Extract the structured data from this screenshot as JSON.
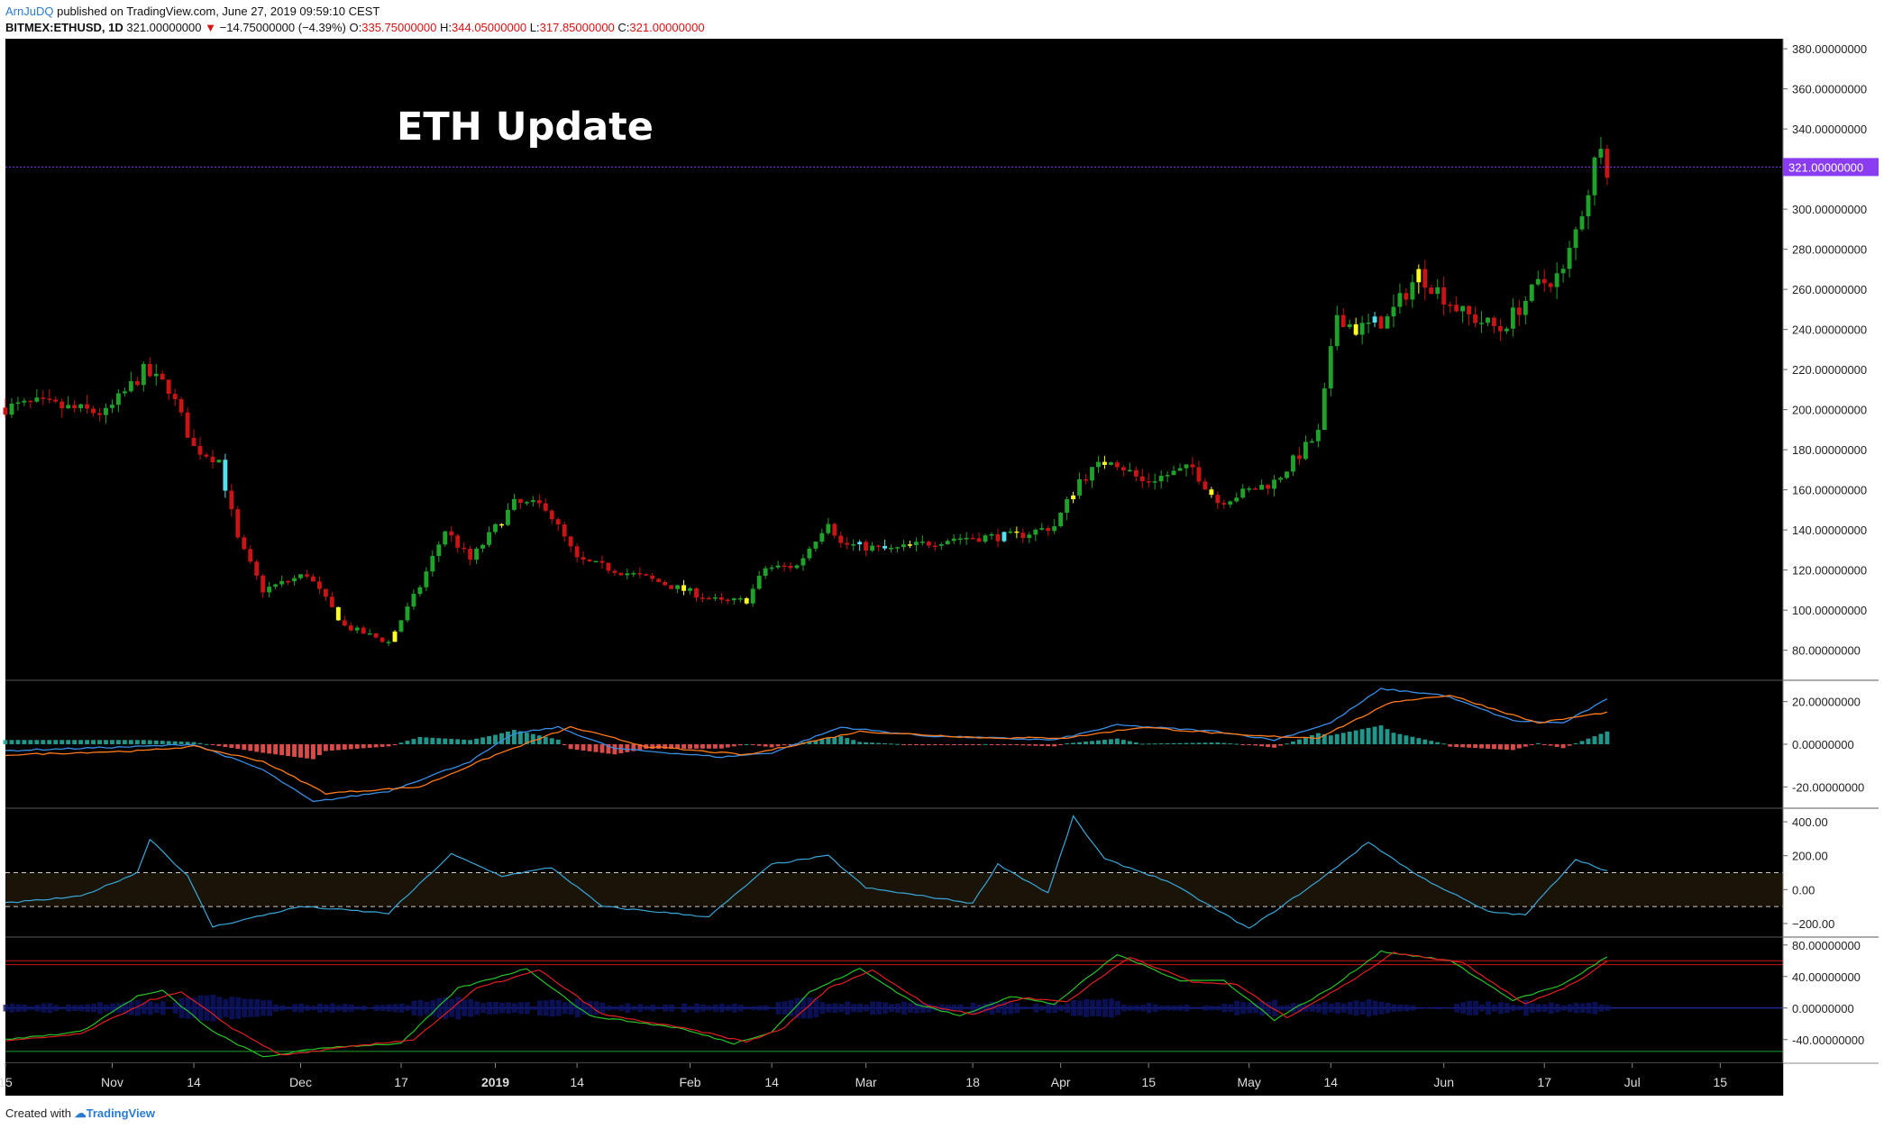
{
  "header": {
    "author": "ArnJuDQ",
    "published_text": "published on TradingView.com, June 27, 2019 09:59:10 CEST",
    "symbol": "BITMEX:ETHUSD, 1D",
    "last": "321.00000000",
    "change": "−14.75000000 (−4.39%)",
    "open_label": "O:",
    "open": "335.75000000",
    "high_label": "H:",
    "high": "344.05000000",
    "low_label": "L:",
    "low": "317.85000000",
    "close_label": "C:",
    "close": "321.00000000"
  },
  "footer": {
    "created_with": "Created with",
    "brand": "TradingView"
  },
  "colors": {
    "background": "#000000",
    "up": "#1fa22a",
    "down": "#c81414",
    "highlight_up": "#ffff22",
    "highlight_down": "#55e0ee",
    "price_line": "#8a3df0",
    "macd_line": "#3a8ee6",
    "signal_line": "#ff7a1a",
    "cci_line": "#3aa6d6",
    "stoch_k": "#27c227",
    "stoch_d": "#e21f1f"
  },
  "chart_data": [
    {
      "type": "candlestick",
      "title": "ETH Update",
      "series_name": "BITMEX:ETHUSD, 1D",
      "ylim": [
        65,
        385
      ],
      "yticks": [
        80,
        100,
        120,
        140,
        160,
        180,
        200,
        220,
        240,
        260,
        280,
        300,
        320,
        340,
        360,
        380
      ],
      "ytick_labels": [
        "80.00000000",
        "100.00000000",
        "120.00000000",
        "140.00000000",
        "160.00000000",
        "180.00000000",
        "200.00000000",
        "220.00000000",
        "240.00000000",
        "260.00000000",
        "280.00000000",
        "300.00000000",
        "320.00000000",
        "340.00000000",
        "360.00000000",
        "380.00000000"
      ],
      "last_price": 321,
      "last_price_label": "321.00000000",
      "x_date_range": [
        "2018-10-15",
        "2019-07-25"
      ],
      "price_path": [
        {
          "x": "2018-10-15",
          "y": 201
        },
        {
          "x": "2018-10-20",
          "y": 203
        },
        {
          "x": "2018-10-31",
          "y": 198
        },
        {
          "x": "2018-11-06",
          "y": 219
        },
        {
          "x": "2018-11-10",
          "y": 211
        },
        {
          "x": "2018-11-14",
          "y": 181
        },
        {
          "x": "2018-11-18",
          "y": 175
        },
        {
          "x": "2018-11-21",
          "y": 135
        },
        {
          "x": "2018-11-25",
          "y": 110
        },
        {
          "x": "2018-12-02",
          "y": 118
        },
        {
          "x": "2018-12-08",
          "y": 92
        },
        {
          "x": "2018-12-15",
          "y": 84
        },
        {
          "x": "2018-12-20",
          "y": 112
        },
        {
          "x": "2018-12-24",
          "y": 140
        },
        {
          "x": "2018-12-28",
          "y": 125
        },
        {
          "x": "2019-01-04",
          "y": 153
        },
        {
          "x": "2019-01-09",
          "y": 152
        },
        {
          "x": "2019-01-14",
          "y": 125
        },
        {
          "x": "2019-01-25",
          "y": 116
        },
        {
          "x": "2019-02-06",
          "y": 104
        },
        {
          "x": "2019-02-10",
          "y": 105
        },
        {
          "x": "2019-02-13",
          "y": 121
        },
        {
          "x": "2019-02-18",
          "y": 122
        },
        {
          "x": "2019-02-23",
          "y": 145
        },
        {
          "x": "2019-02-25",
          "y": 133
        },
        {
          "x": "2019-03-05",
          "y": 130
        },
        {
          "x": "2019-03-15",
          "y": 136
        },
        {
          "x": "2019-03-25",
          "y": 137
        },
        {
          "x": "2019-03-31",
          "y": 142
        },
        {
          "x": "2019-04-04",
          "y": 165
        },
        {
          "x": "2019-04-09",
          "y": 176
        },
        {
          "x": "2019-04-14",
          "y": 164
        },
        {
          "x": "2019-04-22",
          "y": 171
        },
        {
          "x": "2019-04-26",
          "y": 154
        },
        {
          "x": "2019-05-05",
          "y": 164
        },
        {
          "x": "2019-05-12",
          "y": 188
        },
        {
          "x": "2019-05-15",
          "y": 248
        },
        {
          "x": "2019-05-18",
          "y": 240
        },
        {
          "x": "2019-05-23",
          "y": 245
        },
        {
          "x": "2019-05-28",
          "y": 268
        },
        {
          "x": "2019-06-04",
          "y": 248
        },
        {
          "x": "2019-06-10",
          "y": 240
        },
        {
          "x": "2019-06-16",
          "y": 262
        },
        {
          "x": "2019-06-20",
          "y": 268
        },
        {
          "x": "2019-06-24",
          "y": 310
        },
        {
          "x": "2019-06-26",
          "y": 336
        },
        {
          "x": "2019-06-27",
          "y": 321
        }
      ],
      "xtick_labels": [
        {
          "x": "2018-10-15",
          "label": "15"
        },
        {
          "x": "2018-11-01",
          "label": "Nov"
        },
        {
          "x": "2018-11-14",
          "label": "14"
        },
        {
          "x": "2018-12-01",
          "label": "Dec"
        },
        {
          "x": "2018-12-17",
          "label": "17"
        },
        {
          "x": "2019-01-01",
          "label": "2019"
        },
        {
          "x": "2019-01-14",
          "label": "14"
        },
        {
          "x": "2019-02-01",
          "label": "Feb"
        },
        {
          "x": "2019-02-14",
          "label": "14"
        },
        {
          "x": "2019-03-01",
          "label": "Mar"
        },
        {
          "x": "2019-03-18",
          "label": "18"
        },
        {
          "x": "2019-04-01",
          "label": "Apr"
        },
        {
          "x": "2019-04-15",
          "label": "15"
        },
        {
          "x": "2019-05-01",
          "label": "May"
        },
        {
          "x": "2019-05-14",
          "label": "14"
        },
        {
          "x": "2019-06-01",
          "label": "Jun"
        },
        {
          "x": "2019-06-17",
          "label": "17"
        },
        {
          "x": "2019-07-01",
          "label": "Jul"
        },
        {
          "x": "2019-07-15",
          "label": "15"
        }
      ]
    },
    {
      "type": "macd",
      "ylim": [
        -30,
        30
      ],
      "yticks": [
        -20,
        0,
        20
      ],
      "ytick_labels": [
        "-20.00000000",
        "0.00000000",
        "20.00000000"
      ],
      "macd_path": [
        {
          "x": "2018-10-15",
          "y": -3
        },
        {
          "x": "2018-11-06",
          "y": -1
        },
        {
          "x": "2018-11-14",
          "y": 0
        },
        {
          "x": "2018-11-25",
          "y": -12
        },
        {
          "x": "2018-12-03",
          "y": -27
        },
        {
          "x": "2018-12-15",
          "y": -22
        },
        {
          "x": "2018-12-28",
          "y": -8
        },
        {
          "x": "2019-01-04",
          "y": 5
        },
        {
          "x": "2019-01-11",
          "y": 8
        },
        {
          "x": "2019-01-20",
          "y": -2
        },
        {
          "x": "2019-02-06",
          "y": -6
        },
        {
          "x": "2019-02-14",
          "y": -4
        },
        {
          "x": "2019-02-25",
          "y": 8
        },
        {
          "x": "2019-03-10",
          "y": 4
        },
        {
          "x": "2019-03-31",
          "y": 2
        },
        {
          "x": "2019-04-10",
          "y": 9
        },
        {
          "x": "2019-04-26",
          "y": 6
        },
        {
          "x": "2019-05-05",
          "y": 2
        },
        {
          "x": "2019-05-14",
          "y": 10
        },
        {
          "x": "2019-05-22",
          "y": 26
        },
        {
          "x": "2019-06-01",
          "y": 23
        },
        {
          "x": "2019-06-12",
          "y": 11
        },
        {
          "x": "2019-06-20",
          "y": 10
        },
        {
          "x": "2019-06-27",
          "y": 21
        }
      ],
      "signal_path": [
        {
          "x": "2018-10-15",
          "y": -5
        },
        {
          "x": "2018-11-06",
          "y": -3
        },
        {
          "x": "2018-11-14",
          "y": -1
        },
        {
          "x": "2018-11-25",
          "y": -8
        },
        {
          "x": "2018-12-05",
          "y": -23
        },
        {
          "x": "2018-12-20",
          "y": -20
        },
        {
          "x": "2019-01-01",
          "y": -5
        },
        {
          "x": "2019-01-13",
          "y": 8
        },
        {
          "x": "2019-01-25",
          "y": -1
        },
        {
          "x": "2019-02-10",
          "y": -5
        },
        {
          "x": "2019-02-28",
          "y": 6
        },
        {
          "x": "2019-03-20",
          "y": 3
        },
        {
          "x": "2019-04-02",
          "y": 3
        },
        {
          "x": "2019-04-14",
          "y": 8
        },
        {
          "x": "2019-05-01",
          "y": 4
        },
        {
          "x": "2019-05-12",
          "y": 3
        },
        {
          "x": "2019-05-24",
          "y": 20
        },
        {
          "x": "2019-06-02",
          "y": 23
        },
        {
          "x": "2019-06-16",
          "y": 10
        },
        {
          "x": "2019-06-27",
          "y": 15
        }
      ]
    },
    {
      "type": "cci",
      "ylim": [
        -280,
        480
      ],
      "yticks": [
        -200,
        0,
        200,
        400
      ],
      "ytick_labels": [
        "−200.00",
        "0.00",
        "200.00",
        "400.00"
      ],
      "band": [
        -100,
        100
      ],
      "path": [
        {
          "x": "2018-10-15",
          "y": -80
        },
        {
          "x": "2018-10-27",
          "y": -40
        },
        {
          "x": "2018-11-05",
          "y": 100
        },
        {
          "x": "2018-11-07",
          "y": 300
        },
        {
          "x": "2018-11-13",
          "y": 80
        },
        {
          "x": "2018-11-17",
          "y": -220
        },
        {
          "x": "2018-12-01",
          "y": -100
        },
        {
          "x": "2018-12-15",
          "y": -140
        },
        {
          "x": "2018-12-25",
          "y": 210
        },
        {
          "x": "2019-01-02",
          "y": 80
        },
        {
          "x": "2019-01-10",
          "y": 130
        },
        {
          "x": "2019-01-18",
          "y": -100
        },
        {
          "x": "2019-02-04",
          "y": -160
        },
        {
          "x": "2019-02-14",
          "y": 150
        },
        {
          "x": "2019-02-23",
          "y": 200
        },
        {
          "x": "2019-03-01",
          "y": 10
        },
        {
          "x": "2019-03-18",
          "y": -80
        },
        {
          "x": "2019-03-22",
          "y": 150
        },
        {
          "x": "2019-03-30",
          "y": -20
        },
        {
          "x": "2019-04-03",
          "y": 430
        },
        {
          "x": "2019-04-08",
          "y": 180
        },
        {
          "x": "2019-04-18",
          "y": 50
        },
        {
          "x": "2019-05-01",
          "y": -230
        },
        {
          "x": "2019-05-12",
          "y": 50
        },
        {
          "x": "2019-05-20",
          "y": 280
        },
        {
          "x": "2019-05-28",
          "y": 80
        },
        {
          "x": "2019-06-08",
          "y": -130
        },
        {
          "x": "2019-06-14",
          "y": -150
        },
        {
          "x": "2019-06-22",
          "y": 180
        },
        {
          "x": "2019-06-27",
          "y": 110
        }
      ]
    },
    {
      "type": "stochastic_rsi",
      "ylim": [
        -70,
        90
      ],
      "yticks": [
        -40,
        0,
        40,
        80
      ],
      "ytick_labels": [
        "-40.00000000",
        "0.00000000",
        "40.00000000",
        "80.00000000"
      ],
      "levels": [
        -55,
        0,
        55
      ],
      "k_path": [
        {
          "x": "2018-10-15",
          "y": -40
        },
        {
          "x": "2018-10-27",
          "y": -30
        },
        {
          "x": "2018-11-05",
          "y": 15
        },
        {
          "x": "2018-11-09",
          "y": 22
        },
        {
          "x": "2018-11-17",
          "y": -30
        },
        {
          "x": "2018-11-25",
          "y": -62
        },
        {
          "x": "2018-12-05",
          "y": -50
        },
        {
          "x": "2018-12-17",
          "y": -45
        },
        {
          "x": "2018-12-26",
          "y": 25
        },
        {
          "x": "2019-01-06",
          "y": 50
        },
        {
          "x": "2019-01-16",
          "y": -10
        },
        {
          "x": "2019-01-30",
          "y": -25
        },
        {
          "x": "2019-02-08",
          "y": -45
        },
        {
          "x": "2019-02-14",
          "y": -30
        },
        {
          "x": "2019-02-20",
          "y": 20
        },
        {
          "x": "2019-02-28",
          "y": 50
        },
        {
          "x": "2019-03-09",
          "y": 5
        },
        {
          "x": "2019-03-16",
          "y": -10
        },
        {
          "x": "2019-03-24",
          "y": 15
        },
        {
          "x": "2019-03-31",
          "y": 5
        },
        {
          "x": "2019-04-10",
          "y": 68
        },
        {
          "x": "2019-04-20",
          "y": 35
        },
        {
          "x": "2019-04-27",
          "y": 35
        },
        {
          "x": "2019-05-05",
          "y": -15
        },
        {
          "x": "2019-05-14",
          "y": 25
        },
        {
          "x": "2019-05-22",
          "y": 72
        },
        {
          "x": "2019-06-02",
          "y": 60
        },
        {
          "x": "2019-06-12",
          "y": 10
        },
        {
          "x": "2019-06-20",
          "y": 30
        },
        {
          "x": "2019-06-27",
          "y": 65
        }
      ],
      "d_path": [
        {
          "x": "2018-10-15",
          "y": -42
        },
        {
          "x": "2018-10-27",
          "y": -33
        },
        {
          "x": "2018-11-07",
          "y": 10
        },
        {
          "x": "2018-11-12",
          "y": 20
        },
        {
          "x": "2018-11-20",
          "y": -25
        },
        {
          "x": "2018-11-28",
          "y": -60
        },
        {
          "x": "2018-12-08",
          "y": -50
        },
        {
          "x": "2018-12-19",
          "y": -40
        },
        {
          "x": "2018-12-29",
          "y": 25
        },
        {
          "x": "2019-01-08",
          "y": 48
        },
        {
          "x": "2019-01-18",
          "y": -8
        },
        {
          "x": "2019-02-01",
          "y": -27
        },
        {
          "x": "2019-02-10",
          "y": -43
        },
        {
          "x": "2019-02-16",
          "y": -25
        },
        {
          "x": "2019-02-23",
          "y": 25
        },
        {
          "x": "2019-03-02",
          "y": 48
        },
        {
          "x": "2019-03-11",
          "y": 3
        },
        {
          "x": "2019-03-18",
          "y": -8
        },
        {
          "x": "2019-03-26",
          "y": 13
        },
        {
          "x": "2019-04-02",
          "y": 8
        },
        {
          "x": "2019-04-12",
          "y": 65
        },
        {
          "x": "2019-04-22",
          "y": 33
        },
        {
          "x": "2019-04-29",
          "y": 30
        },
        {
          "x": "2019-05-07",
          "y": -12
        },
        {
          "x": "2019-05-16",
          "y": 28
        },
        {
          "x": "2019-05-24",
          "y": 70
        },
        {
          "x": "2019-06-04",
          "y": 58
        },
        {
          "x": "2019-06-14",
          "y": 5
        },
        {
          "x": "2019-06-22",
          "y": 32
        },
        {
          "x": "2019-06-27",
          "y": 60
        }
      ]
    }
  ]
}
